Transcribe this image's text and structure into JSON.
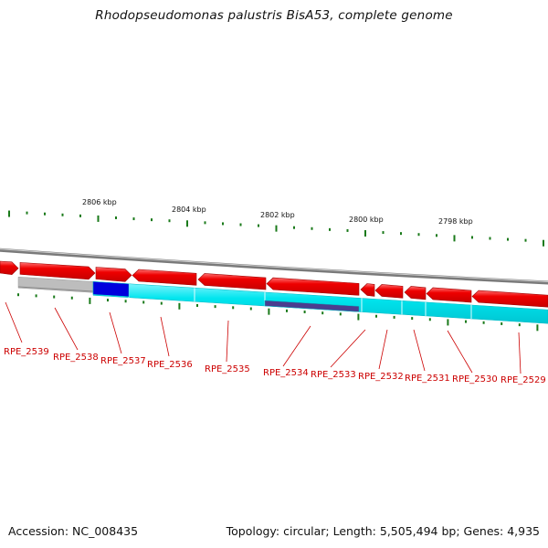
{
  "title": "Rhodopseudomonas palustris BisA53, complete genome",
  "footer": {
    "accession": "Accession: NC_008435",
    "topology": "Topology: circular; Length: 5,505,494 bp; Genes: 4,935"
  },
  "ruler_labels": [
    "2806 kbp",
    "2804 kbp",
    "2802 kbp",
    "2800 kbp",
    "2798 kbp"
  ],
  "gene_labels": [
    "RPE_2539",
    "RPE_2538",
    "RPE_2537",
    "RPE_2536",
    "RPE_2535",
    "RPE_2534",
    "RPE_2533",
    "RPE_2532",
    "RPE_2531",
    "RPE_2530",
    "RPE_2529"
  ],
  "colors": {
    "genes_strand": "#ee0000",
    "cds_track": "#00e5ee",
    "highlight_blue": "#0000dd",
    "highlight_purple": "#4b3d8f",
    "grey_segment": "#bdbdbd",
    "backbone": "#888888",
    "ticks": "#1a7a1a",
    "label_text": "#cc0000"
  }
}
